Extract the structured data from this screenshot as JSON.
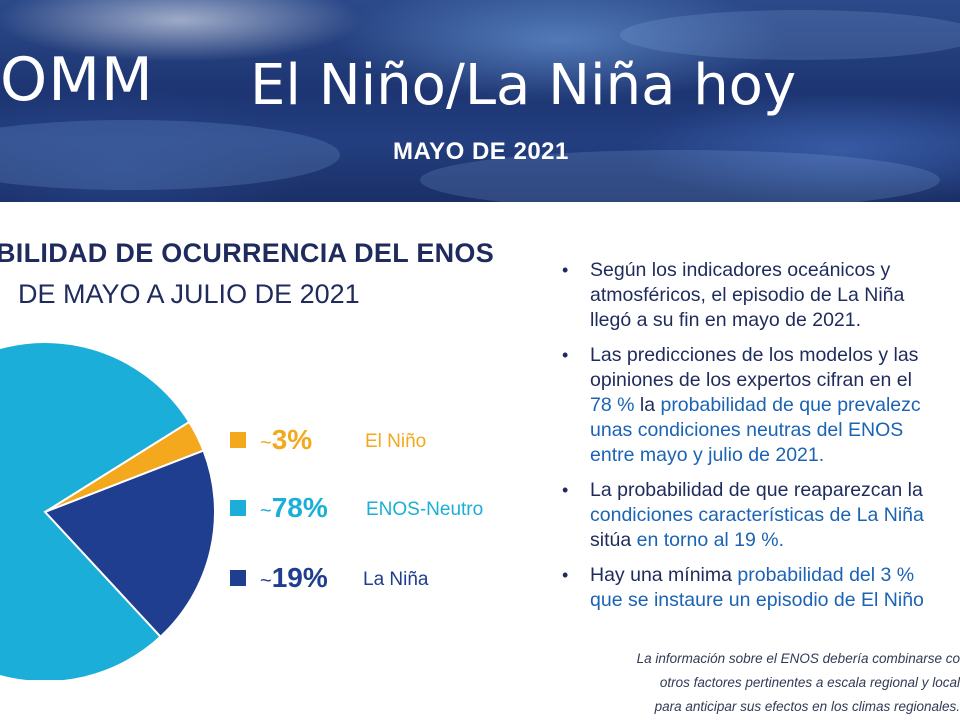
{
  "header": {
    "org": "OMM",
    "title": "El Niño/La Niña hoy",
    "date": "MAYO DE 2021"
  },
  "section": {
    "title": "BILIDAD DE OCURRENCIA DEL ENOS",
    "subtitle": "DE MAYO A JULIO DE  2021"
  },
  "chart_data": {
    "type": "pie",
    "title": "BILIDAD DE OCURRENCIA DEL ENOS",
    "subtitle": "DE MAYO A JULIO DE  2021",
    "slices": [
      {
        "label": "El Niño",
        "value": 3,
        "display": "~3%",
        "color": "#f4a81d"
      },
      {
        "label": "ENOS-Neutro",
        "value": 78,
        "display": "~78%",
        "color": "#1aaed8"
      },
      {
        "label": "La Niña",
        "value": 19,
        "display": "~19%",
        "color": "#1f3e8f"
      }
    ],
    "legend_position": "right"
  },
  "legend": [
    {
      "pct": "3%",
      "tilde": "~",
      "name": "El Niño",
      "color": "#f4a81d",
      "text_color": "#f4a81d"
    },
    {
      "pct": "78%",
      "tilde": "~",
      "name": "ENOS-Neutro",
      "color": "#1aaed8",
      "text_color": "#1aaed8"
    },
    {
      "pct": "19%",
      "tilde": "~",
      "name": "La Niña",
      "color": "#1f3e8f",
      "text_color": "#1f3e8f"
    }
  ],
  "bullets": [
    {
      "lines": [
        [
          {
            "t": "Según los indicadores oceánicos y",
            "hl": false
          }
        ],
        [
          {
            "t": "atmosféricos, el episodio de La Niña",
            "hl": false
          }
        ],
        [
          {
            "t": "llegó a su fin en mayo de 2021.",
            "hl": false
          }
        ]
      ]
    },
    {
      "lines": [
        [
          {
            "t": "Las predicciones de los modelos y las",
            "hl": false
          }
        ],
        [
          {
            "t": "opiniones de los expertos cifran en el",
            "hl": false
          }
        ],
        [
          {
            "t": "78 %",
            "hl": true
          },
          {
            "t": " la ",
            "hl": false
          },
          {
            "t": "probabilidad de que prevalezc",
            "hl": true
          }
        ],
        [
          {
            "t": "unas condiciones neutras del ENOS",
            "hl": true
          }
        ],
        [
          {
            "t": "entre mayo y julio de 2021.",
            "hl": true
          }
        ]
      ]
    },
    {
      "lines": [
        [
          {
            "t": "La probabilidad de que reaparezcan la",
            "hl": false
          }
        ],
        [
          {
            "t": "condiciones características de La Niña",
            "hl": true
          }
        ],
        [
          {
            "t": "sitúa ",
            "hl": false
          },
          {
            "t": "en torno al 19 %.",
            "hl": true
          }
        ]
      ]
    },
    {
      "lines": [
        [
          {
            "t": "Hay una mínima ",
            "hl": false
          },
          {
            "t": "probabilidad del 3 %",
            "hl": true
          }
        ],
        [
          {
            "t": "que se instaure un episodio de El Niño",
            "hl": true
          }
        ]
      ]
    }
  ],
  "footnote": [
    "La información sobre el ENOS debería combinarse co",
    "otros factores pertinentes a escala regional y local",
    "para anticipar sus efectos en los climas regionales."
  ]
}
